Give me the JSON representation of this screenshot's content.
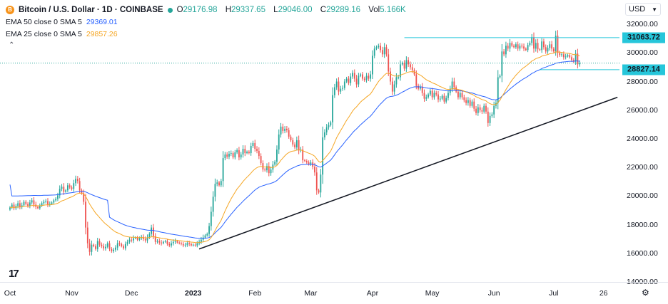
{
  "header": {
    "badge": "B",
    "symbol": "Bitcoin / U.S. Dollar · 1D · COINBASE",
    "ohlc": [
      {
        "label": "O",
        "value": "29176.98"
      },
      {
        "label": "H",
        "value": "29337.65"
      },
      {
        "label": "L",
        "value": "29046.00"
      },
      {
        "label": "C",
        "value": "29289.16"
      },
      {
        "label": "Vol",
        "value": "5.166K"
      }
    ],
    "indicators": [
      {
        "label": "EMA 50 close 0 SMA 5",
        "value": "29369.01",
        "color": "#2962ff"
      },
      {
        "label": "EMA 25 close 0 SMA 5",
        "value": "29857.26",
        "color": "#f5a623"
      }
    ]
  },
  "currency": "USD",
  "collapse_icon": "chevron-up-icon",
  "price_labels": [
    {
      "value": 31063.72,
      "text": "31063.72",
      "bg": "#26c6da"
    },
    {
      "value": 28827.14,
      "text": "28827.14",
      "bg": "#26c6da"
    }
  ],
  "chart_data": {
    "type": "candlestick",
    "y_ticks": [
      "32000.00",
      "30000.00",
      "28000.00",
      "26000.00",
      "24000.00",
      "22000.00",
      "20000.00",
      "18000.00",
      "16000.00",
      "14000.00"
    ],
    "ylim": [
      14000,
      33000
    ],
    "x_ticks": [
      "Oct",
      "Nov",
      "Dec",
      "2023",
      "Feb",
      "Mar",
      "Apr",
      "May",
      "Jun",
      "Jul",
      "26"
    ],
    "x_tick_days": [
      0,
      31,
      61,
      92,
      123,
      151,
      182,
      212,
      243,
      273,
      298
    ],
    "xlim": [
      -5,
      306
    ],
    "current_price": 29289.16,
    "horizontal_lines": [
      {
        "value": 31063.72,
        "from_day": 198,
        "to_day": 306
      },
      {
        "value": 28827.14,
        "from_day": 266,
        "to_day": 306
      }
    ],
    "trendline": {
      "from": {
        "day": 95,
        "value": 16300
      },
      "to": {
        "day": 305,
        "value": 26900
      }
    },
    "ema_colors": {
      "ema50": "#2962ff",
      "ema25": "#f5a623"
    },
    "up_color": "#26a69a",
    "down_color": "#ef5350",
    "closes": [
      19200,
      19400,
      19150,
      19300,
      19500,
      19250,
      19350,
      19600,
      19450,
      19300,
      19550,
      19700,
      19400,
      19250,
      19150,
      19350,
      19500,
      19600,
      19650,
      19400,
      19450,
      19550,
      19700,
      19800,
      20050,
      20500,
      20650,
      20300,
      20400,
      20750,
      20600,
      20500,
      20900,
      21200,
      21050,
      20400,
      20200,
      19600,
      17800,
      16700,
      16100,
      16600,
      16500,
      16300,
      16850,
      16600,
      16500,
      16350,
      16450,
      16700,
      16300,
      16150,
      16250,
      16400,
      16700,
      16650,
      16500,
      16350,
      16650,
      16800,
      16950,
      16900,
      17050,
      17100,
      16950,
      17050,
      17150,
      17000,
      16900,
      17100,
      17350,
      17800,
      17200,
      16800,
      16850,
      16750,
      16700,
      16800,
      16850,
      16650,
      16550,
      16700,
      16800,
      16850,
      16750,
      16700,
      16650,
      16550,
      16600,
      16700,
      16650,
      16550,
      16600,
      16550,
      16700,
      16800,
      16950,
      17100,
      17250,
      17350,
      17900,
      18900,
      19950,
      20850,
      20950,
      20750,
      21050,
      22650,
      22900,
      22750,
      22950,
      23000,
      22700,
      23050,
      23200,
      22700,
      22900,
      23300,
      23000,
      23100,
      23000,
      23500,
      23700,
      23300,
      23150,
      22800,
      22300,
      21850,
      21800,
      22100,
      21600,
      21850,
      22200,
      22400,
      23250,
      24300,
      24850,
      24550,
      24700,
      24600,
      24150,
      23900,
      23600,
      23400,
      23900,
      23200,
      23250,
      22500,
      22450,
      22350,
      22250,
      22350,
      22050,
      21650,
      20400,
      20250,
      21500,
      24100,
      24450,
      24800,
      24950,
      25150,
      27050,
      27600,
      28000,
      27300,
      27500,
      27550,
      28000,
      28200,
      27900,
      28350,
      28600,
      28200,
      27800,
      28400,
      28500,
      28200,
      28100,
      28400,
      28200,
      28500,
      29800,
      30300,
      30400,
      30500,
      30200,
      29900,
      30400,
      29900,
      28700,
      28000,
      27300,
      27800,
      28300,
      28300,
      29200,
      29300,
      28900,
      29500,
      29200,
      29000,
      28800,
      28500,
      27700,
      27500,
      27650,
      27200,
      26800,
      26900,
      27100,
      27350,
      26900,
      27200,
      27100,
      26750,
      26800,
      27000,
      26600,
      26850,
      27200,
      27500,
      28000,
      27600,
      27300,
      26900,
      27200,
      26900,
      26700,
      26500,
      26700,
      26300,
      26600,
      26100,
      25800,
      26200,
      26000,
      25900,
      26300,
      25900,
      25100,
      25600,
      25700,
      26300,
      26500,
      28300,
      28400,
      30100,
      29900,
      30500,
      30300,
      30700,
      30500,
      30400,
      30600,
      30300,
      30500,
      30450,
      30300,
      30200,
      30550,
      30700,
      31100,
      30300,
      30700,
      30250,
      30200,
      30800,
      30400,
      30100,
      30350,
      30600,
      30300,
      30100,
      31200,
      30000,
      29850,
      29900,
      29700,
      29750,
      29850,
      29700,
      29500,
      29400,
      29950,
      29200,
      29289
    ]
  }
}
